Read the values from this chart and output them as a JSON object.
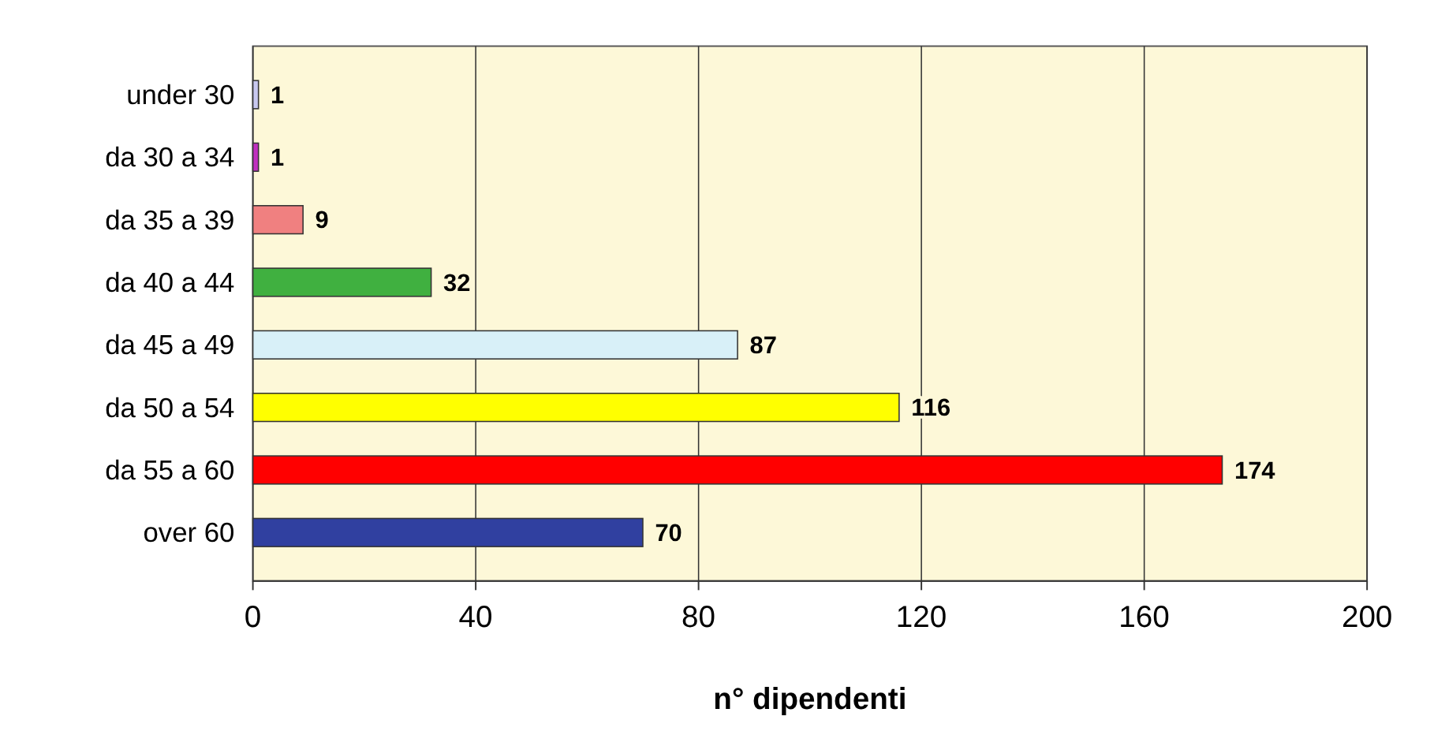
{
  "chart_data": {
    "type": "bar",
    "orientation": "horizontal",
    "xlabel": "n° dipendenti",
    "categories": [
      "under 30",
      "da 30 a 34",
      "da 35 a 39",
      "da 40 a 44",
      "da 45 a 49",
      "da 50 a 54",
      "da 55 a 60",
      "over 60"
    ],
    "values": [
      1,
      1,
      9,
      32,
      87,
      116,
      174,
      70
    ],
    "colors": [
      "#c8c8f0",
      "#c030c0",
      "#f08080",
      "#40b040",
      "#d8f0f8",
      "#ffff00",
      "#ff0000",
      "#3040a0"
    ],
    "xlim": [
      0,
      200
    ],
    "xticks": [
      0,
      40,
      80,
      120,
      160,
      200
    ],
    "grid": "x",
    "data_labels": true
  }
}
